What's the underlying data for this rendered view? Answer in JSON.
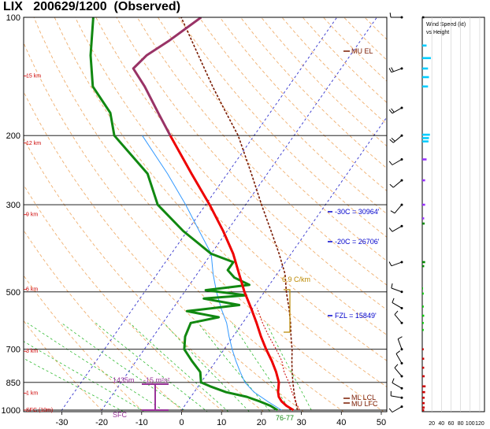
{
  "title": "LIX   200629/1200  (Observed)",
  "chart_data": {
    "type": "skew-t",
    "title": "LIX   200629/1200  (Observed)",
    "pressure_ticks": [
      "100",
      "200",
      "300",
      "500",
      "700",
      "850",
      "1000"
    ],
    "pressure_values": [
      100,
      200,
      300,
      500,
      700,
      850,
      1000
    ],
    "temp_ticks": [
      "-30",
      "-20",
      "-10",
      "0",
      "10",
      "20",
      "30",
      "40",
      "50"
    ],
    "temp_values": [
      -30,
      -20,
      -10,
      0,
      10,
      20,
      30,
      40,
      50
    ],
    "height_labels": [
      {
        "text": "15 km",
        "p": 141
      },
      {
        "text": "12 km",
        "p": 209
      },
      {
        "text": "9 km",
        "p": 318
      },
      {
        "text": "6 km",
        "p": 493
      },
      {
        "text": "3 km",
        "p": 708
      },
      {
        "text": "1 km",
        "p": 905
      },
      {
        "text": "SFC (10m)",
        "p": 1000
      }
    ],
    "temperature": [
      {
        "p": 1000,
        "t": 28
      },
      {
        "p": 975,
        "t": 25.5
      },
      {
        "p": 950,
        "t": 23.5
      },
      {
        "p": 925,
        "t": 22
      },
      {
        "p": 900,
        "t": 21
      },
      {
        "p": 850,
        "t": 19.5
      },
      {
        "p": 800,
        "t": 17
      },
      {
        "p": 750,
        "t": 14
      },
      {
        "p": 700,
        "t": 10.5
      },
      {
        "p": 650,
        "t": 7
      },
      {
        "p": 600,
        "t": 3.5
      },
      {
        "p": 550,
        "t": -0.5
      },
      {
        "p": 500,
        "t": -5
      },
      {
        "p": 450,
        "t": -9.5
      },
      {
        "p": 400,
        "t": -14.5
      },
      {
        "p": 350,
        "t": -21
      },
      {
        "p": 300,
        "t": -29
      },
      {
        "p": 250,
        "t": -39
      },
      {
        "p": 200,
        "t": -51
      },
      {
        "p": 175,
        "t": -58
      },
      {
        "p": 150,
        "t": -66
      },
      {
        "p": 135,
        "t": -72
      },
      {
        "p": 125,
        "t": -71
      },
      {
        "p": 115,
        "t": -68
      },
      {
        "p": 100,
        "t": -64
      }
    ],
    "dewpoint": [
      {
        "p": 1000,
        "t": 24
      },
      {
        "p": 975,
        "t": 21.5
      },
      {
        "p": 950,
        "t": 18
      },
      {
        "p": 925,
        "t": 14
      },
      {
        "p": 900,
        "t": 8
      },
      {
        "p": 870,
        "t": 3
      },
      {
        "p": 850,
        "t": 0
      },
      {
        "p": 800,
        "t": -2
      },
      {
        "p": 750,
        "t": -6
      },
      {
        "p": 700,
        "t": -10
      },
      {
        "p": 650,
        "t": -12
      },
      {
        "p": 600,
        "t": -13
      },
      {
        "p": 580,
        "t": -7
      },
      {
        "p": 560,
        "t": -16
      },
      {
        "p": 540,
        "t": -4
      },
      {
        "p": 520,
        "t": -14
      },
      {
        "p": 510,
        "t": -4
      },
      {
        "p": 495,
        "t": -15
      },
      {
        "p": 480,
        "t": -5
      },
      {
        "p": 460,
        "t": -10
      },
      {
        "p": 440,
        "t": -13
      },
      {
        "p": 420,
        "t": -13
      },
      {
        "p": 400,
        "t": -20
      },
      {
        "p": 350,
        "t": -31
      },
      {
        "p": 300,
        "t": -42
      },
      {
        "p": 250,
        "t": -50
      },
      {
        "p": 200,
        "t": -65
      },
      {
        "p": 175,
        "t": -70
      },
      {
        "p": 150,
        "t": -79
      },
      {
        "p": 125,
        "t": -85
      },
      {
        "p": 100,
        "t": -91
      }
    ],
    "wetbulb": [
      {
        "p": 1000,
        "t": 25
      },
      {
        "p": 950,
        "t": 20
      },
      {
        "p": 900,
        "t": 15
      },
      {
        "p": 850,
        "t": 11
      },
      {
        "p": 800,
        "t": 8
      },
      {
        "p": 750,
        "t": 5
      },
      {
        "p": 700,
        "t": 2
      },
      {
        "p": 650,
        "t": -1
      },
      {
        "p": 600,
        "t": -4
      },
      {
        "p": 550,
        "t": -8
      },
      {
        "p": 500,
        "t": -12
      },
      {
        "p": 450,
        "t": -16
      },
      {
        "p": 400,
        "t": -20
      },
      {
        "p": 350,
        "t": -27
      },
      {
        "p": 300,
        "t": -35
      },
      {
        "p": 250,
        "t": -45
      },
      {
        "p": 200,
        "t": -58
      }
    ],
    "parcel": [
      {
        "p": 1000,
        "t": 29
      },
      {
        "p": 950,
        "t": 27
      },
      {
        "p": 900,
        "t": 25
      },
      {
        "p": 850,
        "t": 23
      },
      {
        "p": 800,
        "t": 21
      },
      {
        "p": 750,
        "t": 19
      },
      {
        "p": 700,
        "t": 17
      },
      {
        "p": 650,
        "t": 14.5
      },
      {
        "p": 600,
        "t": 12
      },
      {
        "p": 550,
        "t": 9
      },
      {
        "p": 500,
        "t": 5.5
      },
      {
        "p": 450,
        "t": 2
      },
      {
        "p": 400,
        "t": -3
      },
      {
        "p": 350,
        "t": -9
      },
      {
        "p": 300,
        "t": -16
      },
      {
        "p": 250,
        "t": -24
      },
      {
        "p": 200,
        "t": -34
      },
      {
        "p": 175,
        "t": -41
      },
      {
        "p": 150,
        "t": -49
      },
      {
        "p": 125,
        "t": -58
      },
      {
        "p": 100,
        "t": -69
      }
    ],
    "virtual_temperature": [
      {
        "p": 1000,
        "t": 29.5
      },
      {
        "p": 950,
        "t": 27
      },
      {
        "p": 900,
        "t": 24.5
      },
      {
        "p": 850,
        "t": 22
      },
      {
        "p": 800,
        "t": 19
      },
      {
        "p": 750,
        "t": 16.5
      },
      {
        "p": 700,
        "t": 13
      },
      {
        "p": 650,
        "t": 9
      },
      {
        "p": 600,
        "t": 5
      },
      {
        "p": 550,
        "t": 1
      }
    ],
    "annotations": {
      "mu_el": "MU  EL",
      "m30c": "-30C = 30964'",
      "m20c": "-20C = 26706'",
      "lapse": "6.9 C/km",
      "fzl": "FZL = 15849'",
      "ml_lcl": "ML  LCL",
      "mu_lfc": "MU  LFC",
      "eff_depth": "1435m",
      "srh": "-15 m²s²",
      "sfc": "SFC",
      "surface_values": "76-77"
    },
    "wind_panel": {
      "title_line1": "Wind Speed (kt)",
      "title_line2": "vs Height",
      "xticks": [
        "20",
        "40",
        "60",
        "80",
        "100",
        "120"
      ]
    },
    "wind_bars": [
      {
        "p": 100,
        "kt": 4,
        "color": "#000000"
      },
      {
        "p": 118,
        "kt": 9,
        "color": "#00ccff"
      },
      {
        "p": 127,
        "kt": 18,
        "color": "#00ccff"
      },
      {
        "p": 135,
        "kt": 12,
        "color": "#00ccff"
      },
      {
        "p": 142,
        "kt": 14,
        "color": "#00ccff"
      },
      {
        "p": 150,
        "kt": 12,
        "color": "#00ccff"
      },
      {
        "p": 199,
        "kt": 16,
        "color": "#00ccff"
      },
      {
        "p": 203,
        "kt": 14,
        "color": "#00ccff"
      },
      {
        "p": 207,
        "kt": 13,
        "color": "#00ccff"
      },
      {
        "p": 230,
        "kt": 9,
        "color": "#9933ff"
      },
      {
        "p": 260,
        "kt": 6,
        "color": "#9933ff"
      },
      {
        "p": 300,
        "kt": 6,
        "color": "#9933ff"
      },
      {
        "p": 325,
        "kt": 4,
        "color": "#9933ff"
      },
      {
        "p": 335,
        "kt": 5,
        "color": "#008800"
      },
      {
        "p": 420,
        "kt": 6,
        "color": "#008800"
      },
      {
        "p": 430,
        "kt": 4,
        "color": "#008800"
      },
      {
        "p": 490,
        "kt": 1,
        "color": "#00cc00"
      },
      {
        "p": 505,
        "kt": 3,
        "color": "#00cc00"
      },
      {
        "p": 545,
        "kt": 3,
        "color": "#00cc00"
      },
      {
        "p": 575,
        "kt": 4,
        "color": "#00cc00"
      },
      {
        "p": 600,
        "kt": 3,
        "color": "#00cc00"
      },
      {
        "p": 625,
        "kt": 3,
        "color": "#00cc00"
      },
      {
        "p": 700,
        "kt": 3,
        "color": "#cc0000"
      },
      {
        "p": 740,
        "kt": 4,
        "color": "#cc0000"
      },
      {
        "p": 780,
        "kt": 4,
        "color": "#cc0000"
      },
      {
        "p": 820,
        "kt": 5,
        "color": "#cc0000"
      },
      {
        "p": 870,
        "kt": 7,
        "color": "#cc0000"
      },
      {
        "p": 900,
        "kt": 6,
        "color": "#cc0000"
      },
      {
        "p": 930,
        "kt": 5,
        "color": "#cc0000"
      },
      {
        "p": 960,
        "kt": 5,
        "color": "#cc0000"
      },
      {
        "p": 985,
        "kt": 5,
        "color": "#cc0000"
      },
      {
        "p": 1000,
        "kt": 4,
        "color": "#cc0000"
      }
    ],
    "hodo_barbs": [
      {
        "p": 100,
        "dir": 270,
        "spd": 5
      },
      {
        "p": 135,
        "dir": 250,
        "spd": 15
      },
      {
        "p": 170,
        "dir": 240,
        "spd": 15
      },
      {
        "p": 200,
        "dir": 230,
        "spd": 20
      },
      {
        "p": 230,
        "dir": 240,
        "spd": 10
      },
      {
        "p": 260,
        "dir": 230,
        "spd": 10
      },
      {
        "p": 300,
        "dir": 220,
        "spd": 10
      },
      {
        "p": 340,
        "dir": 240,
        "spd": 5
      },
      {
        "p": 420,
        "dir": 250,
        "spd": 5
      },
      {
        "p": 500,
        "dir": 290,
        "spd": 5
      },
      {
        "p": 550,
        "dir": 300,
        "spd": 5
      },
      {
        "p": 600,
        "dir": 320,
        "spd": 5
      },
      {
        "p": 700,
        "dir": 340,
        "spd": 5
      },
      {
        "p": 760,
        "dir": 330,
        "spd": 5
      },
      {
        "p": 820,
        "dir": 320,
        "spd": 5
      },
      {
        "p": 880,
        "dir": 300,
        "spd": 10
      },
      {
        "p": 930,
        "dir": 280,
        "spd": 10
      },
      {
        "p": 980,
        "dir": 240,
        "spd": 5
      }
    ]
  }
}
